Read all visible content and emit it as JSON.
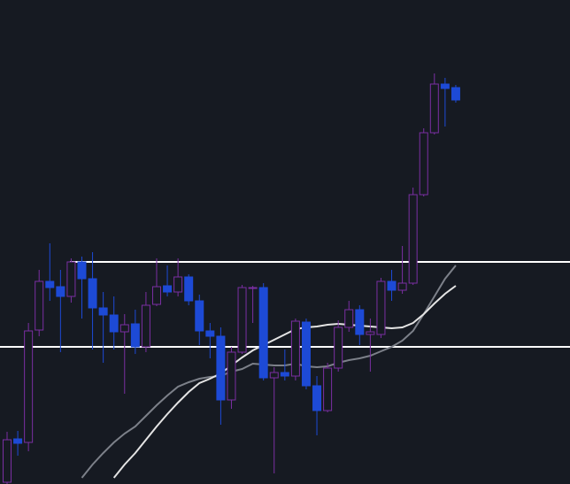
{
  "chart_data": {
    "type": "candlestick",
    "ylim": [
      0,
      547
    ],
    "up_color": "#7b2fa3",
    "down_color": "#1d4ad6",
    "open": [
      2,
      51,
      47,
      174,
      229,
      223,
      212,
      251,
      232,
      199,
      191,
      172,
      181,
      155,
      203,
      224,
      217,
      234,
      207,
      173,
      167,
      95,
      149,
      221,
      222,
      120,
      126,
      122,
      183,
      111,
      83,
      131,
      177,
      197,
      169,
      169,
      229,
      219,
      227,
      327,
      397,
      452,
      448
    ],
    "high": [
      59,
      60,
      182,
      242,
      272,
      242,
      255,
      257,
      262,
      217,
      212,
      192,
      197,
      217,
      255,
      247,
      255,
      237,
      214,
      182,
      177,
      155,
      225,
      224,
      227,
      132,
      152,
      187,
      187,
      122,
      137,
      185,
      207,
      202,
      187,
      233,
      242,
      269,
      335,
      402,
      464,
      459,
      451
    ],
    "low": [
      0,
      32,
      37,
      167,
      207,
      149,
      205,
      187,
      152,
      137,
      152,
      102,
      147,
      149,
      201,
      212,
      212,
      202,
      157,
      142,
      67,
      85,
      147,
      182,
      117,
      12,
      117,
      117,
      107,
      55,
      81,
      127,
      172,
      157,
      127,
      165,
      207,
      215,
      225,
      325,
      395,
      404,
      431
    ],
    "close": [
      50,
      46,
      173,
      229,
      222,
      212,
      251,
      232,
      199,
      191,
      172,
      180,
      155,
      202,
      223,
      217,
      234,
      207,
      173,
      167,
      95,
      149,
      222,
      222,
      120,
      126,
      122,
      184,
      111,
      83,
      131,
      177,
      197,
      169,
      172,
      229,
      219,
      227,
      327,
      397,
      452,
      447,
      434
    ],
    "lines": [
      {
        "color": "#7c8089",
        "values": [
          null,
          null,
          null,
          null,
          null,
          null,
          null,
          7,
          22,
          35,
          47,
          57,
          65,
          77,
          89,
          100,
          110,
          115,
          119,
          121,
          122,
          127,
          130,
          136,
          135,
          134,
          134,
          136,
          133,
          132,
          133,
          137,
          140,
          142,
          145,
          150,
          155,
          162,
          173,
          192,
          212,
          232,
          247
        ]
      },
      {
        "color": "#e4e4e4",
        "values": [
          null,
          null,
          null,
          null,
          null,
          null,
          null,
          null,
          null,
          null,
          7,
          22,
          35,
          50,
          65,
          79,
          92,
          104,
          114,
          119,
          125,
          134,
          143,
          151,
          157,
          163,
          169,
          175,
          177,
          178,
          180,
          181,
          180,
          179,
          178,
          177,
          176,
          177,
          182,
          192,
          204,
          215,
          224
        ]
      }
    ],
    "levels": [
      {
        "value": 251,
        "color": "#ffffff"
      },
      {
        "value": 155,
        "color": "#ffffff"
      }
    ]
  }
}
